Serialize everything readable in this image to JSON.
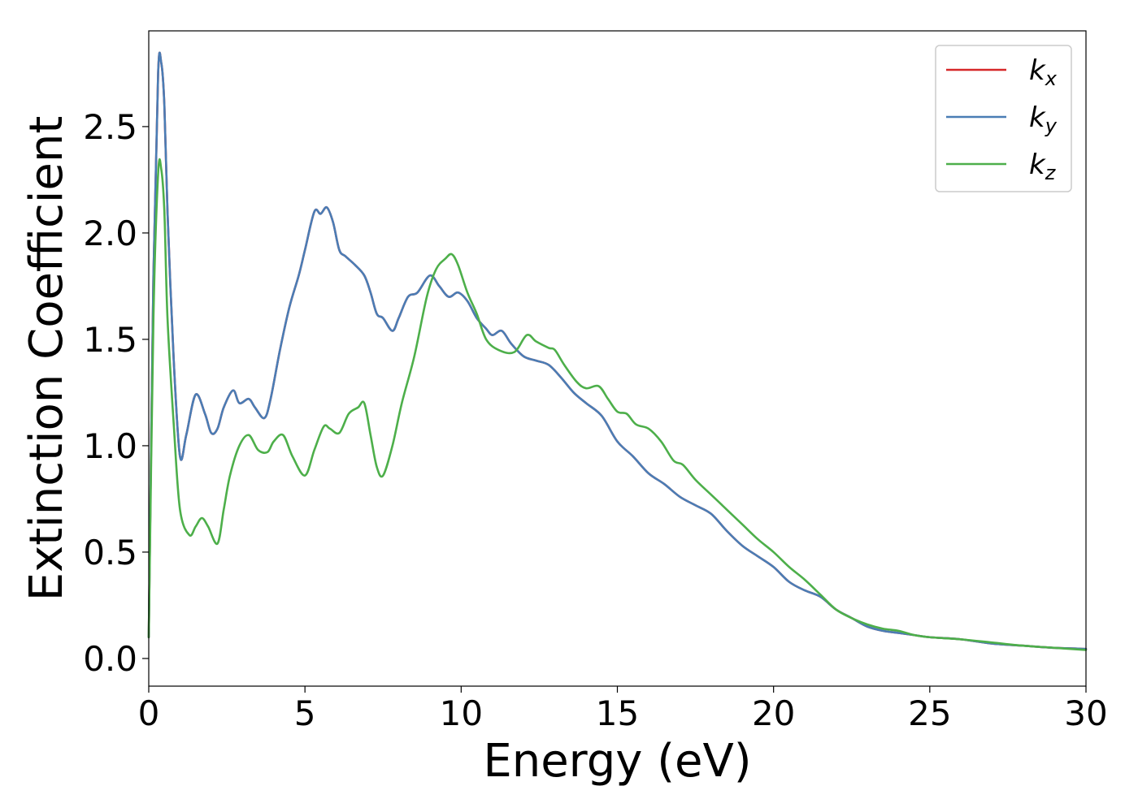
{
  "chart_data": {
    "type": "line",
    "xlabel": "Energy (eV)",
    "ylabel": "Extinction Coefficient",
    "xlim": [
      0,
      30
    ],
    "ylim": [
      -0.13,
      2.95
    ],
    "xticks": [
      0,
      5,
      10,
      15,
      20,
      25,
      30
    ],
    "xtick_labels": [
      "0",
      "5",
      "10",
      "15",
      "20",
      "25",
      "30"
    ],
    "yticks": [
      0.0,
      0.5,
      1.0,
      1.5,
      2.0,
      2.5
    ],
    "ytick_labels": [
      "0.0",
      "0.5",
      "1.0",
      "1.5",
      "2.0",
      "2.5"
    ],
    "grid": false,
    "legend_position": "top-right",
    "series": [
      {
        "name": "k",
        "subscript": "x",
        "color": "#d62728",
        "x": [
          0,
          0.15,
          0.3,
          0.4,
          0.5,
          0.6,
          0.8,
          1.0,
          1.2,
          1.5,
          1.8,
          2.0,
          2.2,
          2.4,
          2.7,
          2.9,
          3.2,
          3.4,
          3.7,
          3.9,
          4.2,
          4.5,
          4.8,
          5.0,
          5.3,
          5.5,
          5.7,
          5.9,
          6.1,
          6.3,
          6.6,
          6.9,
          7.1,
          7.3,
          7.5,
          7.8,
          8.0,
          8.3,
          8.6,
          9.0,
          9.3,
          9.6,
          9.9,
          10.2,
          10.5,
          10.8,
          11.0,
          11.3,
          11.6,
          12.0,
          12.4,
          12.8,
          13.2,
          13.6,
          14.0,
          14.5,
          15.0,
          15.5,
          16.0,
          16.5,
          17.0,
          17.5,
          18.0,
          18.5,
          19.0,
          19.5,
          20.0,
          20.5,
          21.0,
          21.5,
          22.0,
          22.5,
          23.0,
          23.5,
          24.0,
          24.5,
          25.0,
          26.0,
          27.0,
          28.0,
          29.0,
          30.0
        ],
        "values": [
          0.1,
          1.8,
          2.75,
          2.8,
          2.6,
          2.1,
          1.4,
          0.95,
          1.05,
          1.24,
          1.15,
          1.06,
          1.08,
          1.18,
          1.26,
          1.2,
          1.22,
          1.18,
          1.13,
          1.22,
          1.45,
          1.65,
          1.8,
          1.92,
          2.1,
          2.09,
          2.12,
          2.05,
          1.92,
          1.89,
          1.85,
          1.8,
          1.72,
          1.62,
          1.6,
          1.54,
          1.6,
          1.7,
          1.72,
          1.8,
          1.75,
          1.7,
          1.72,
          1.68,
          1.6,
          1.55,
          1.52,
          1.54,
          1.48,
          1.42,
          1.4,
          1.38,
          1.32,
          1.25,
          1.2,
          1.14,
          1.02,
          0.95,
          0.87,
          0.82,
          0.76,
          0.72,
          0.68,
          0.6,
          0.53,
          0.48,
          0.43,
          0.36,
          0.32,
          0.29,
          0.23,
          0.19,
          0.15,
          0.13,
          0.12,
          0.11,
          0.1,
          0.09,
          0.07,
          0.06,
          0.05,
          0.045
        ]
      },
      {
        "name": "k",
        "subscript": "y",
        "color": "#4a7db5",
        "x": [
          0,
          0.15,
          0.3,
          0.4,
          0.5,
          0.6,
          0.8,
          1.0,
          1.2,
          1.5,
          1.8,
          2.0,
          2.2,
          2.4,
          2.7,
          2.9,
          3.2,
          3.4,
          3.7,
          3.9,
          4.2,
          4.5,
          4.8,
          5.0,
          5.3,
          5.5,
          5.7,
          5.9,
          6.1,
          6.3,
          6.6,
          6.9,
          7.1,
          7.3,
          7.5,
          7.8,
          8.0,
          8.3,
          8.6,
          9.0,
          9.3,
          9.6,
          9.9,
          10.2,
          10.5,
          10.8,
          11.0,
          11.3,
          11.6,
          12.0,
          12.4,
          12.8,
          13.2,
          13.6,
          14.0,
          14.5,
          15.0,
          15.5,
          16.0,
          16.5,
          17.0,
          17.5,
          18.0,
          18.5,
          19.0,
          19.5,
          20.0,
          20.5,
          21.0,
          21.5,
          22.0,
          22.5,
          23.0,
          23.5,
          24.0,
          24.5,
          25.0,
          26.0,
          27.0,
          28.0,
          29.0,
          30.0
        ],
        "values": [
          0.1,
          1.8,
          2.75,
          2.8,
          2.6,
          2.1,
          1.4,
          0.95,
          1.05,
          1.24,
          1.15,
          1.06,
          1.08,
          1.18,
          1.26,
          1.2,
          1.22,
          1.18,
          1.13,
          1.22,
          1.45,
          1.65,
          1.8,
          1.92,
          2.1,
          2.09,
          2.12,
          2.05,
          1.92,
          1.89,
          1.85,
          1.8,
          1.72,
          1.62,
          1.6,
          1.54,
          1.6,
          1.7,
          1.72,
          1.8,
          1.75,
          1.7,
          1.72,
          1.68,
          1.6,
          1.55,
          1.52,
          1.54,
          1.48,
          1.42,
          1.4,
          1.38,
          1.32,
          1.25,
          1.2,
          1.14,
          1.02,
          0.95,
          0.87,
          0.82,
          0.76,
          0.72,
          0.68,
          0.6,
          0.53,
          0.48,
          0.43,
          0.36,
          0.32,
          0.29,
          0.23,
          0.19,
          0.15,
          0.13,
          0.12,
          0.11,
          0.1,
          0.09,
          0.07,
          0.06,
          0.05,
          0.045
        ]
      },
      {
        "name": "k",
        "subscript": "z",
        "color": "#4daf4a",
        "x": [
          0,
          0.15,
          0.3,
          0.4,
          0.5,
          0.6,
          0.8,
          1.0,
          1.3,
          1.5,
          1.7,
          1.9,
          2.2,
          2.4,
          2.6,
          2.9,
          3.2,
          3.5,
          3.8,
          4.0,
          4.3,
          4.6,
          5.0,
          5.3,
          5.6,
          5.8,
          6.1,
          6.4,
          6.7,
          6.9,
          7.1,
          7.3,
          7.5,
          7.8,
          8.1,
          8.5,
          8.9,
          9.2,
          9.5,
          9.7,
          9.9,
          10.2,
          10.5,
          10.8,
          11.2,
          11.7,
          12.1,
          12.4,
          12.8,
          13.0,
          13.3,
          13.7,
          14.0,
          14.4,
          14.7,
          15.0,
          15.3,
          15.6,
          16.0,
          16.4,
          16.8,
          17.1,
          17.5,
          18.0,
          18.5,
          19.0,
          19.5,
          20.0,
          20.5,
          21.0,
          21.5,
          22.0,
          22.5,
          23.0,
          23.5,
          24.0,
          24.5,
          25.0,
          26.0,
          27.0,
          28.0,
          29.0,
          30.0
        ],
        "values": [
          0.1,
          1.6,
          2.28,
          2.3,
          2.1,
          1.6,
          1.1,
          0.7,
          0.58,
          0.62,
          0.66,
          0.62,
          0.54,
          0.7,
          0.86,
          1.0,
          1.05,
          0.98,
          0.97,
          1.02,
          1.05,
          0.95,
          0.86,
          0.98,
          1.09,
          1.08,
          1.06,
          1.15,
          1.18,
          1.2,
          1.05,
          0.9,
          0.86,
          1.0,
          1.2,
          1.42,
          1.7,
          1.83,
          1.88,
          1.9,
          1.85,
          1.72,
          1.62,
          1.5,
          1.45,
          1.44,
          1.52,
          1.49,
          1.46,
          1.45,
          1.38,
          1.3,
          1.27,
          1.28,
          1.22,
          1.16,
          1.15,
          1.1,
          1.08,
          1.02,
          0.93,
          0.91,
          0.84,
          0.77,
          0.7,
          0.63,
          0.56,
          0.5,
          0.43,
          0.37,
          0.3,
          0.23,
          0.19,
          0.16,
          0.14,
          0.13,
          0.11,
          0.1,
          0.09,
          0.075,
          0.06,
          0.05,
          0.04
        ]
      }
    ]
  }
}
